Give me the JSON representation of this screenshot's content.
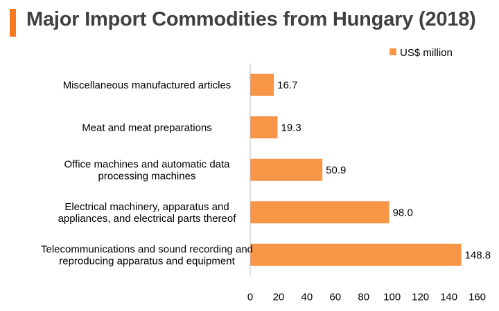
{
  "title": "Major Import Commodities from Hungary (2018)",
  "colors": {
    "accent": "#f47920",
    "bar": "#f79646"
  },
  "chart_data": {
    "type": "bar",
    "orientation": "horizontal",
    "categories": [
      [
        "Miscellaneous manufactured articles"
      ],
      [
        "Meat and meat preparations"
      ],
      [
        "Office machines and automatic data",
        "processing machines"
      ],
      [
        "Electrical machinery, apparatus and",
        "appliances, and electrical parts thereof"
      ],
      [
        "Telecommunications and sound recording and",
        "reproducing apparatus and equipment"
      ]
    ],
    "series": [
      {
        "name": "US$ million",
        "values": [
          16.7,
          19.3,
          50.9,
          98.0,
          148.8
        ]
      }
    ],
    "value_labels": [
      "16.7",
      "19.3",
      "50.9",
      "98.0",
      "148.8"
    ],
    "xlim": [
      0,
      160
    ],
    "xticks": [
      0,
      20,
      40,
      60,
      80,
      100,
      120,
      140,
      160
    ],
    "legend": "top-right",
    "grid": false
  }
}
